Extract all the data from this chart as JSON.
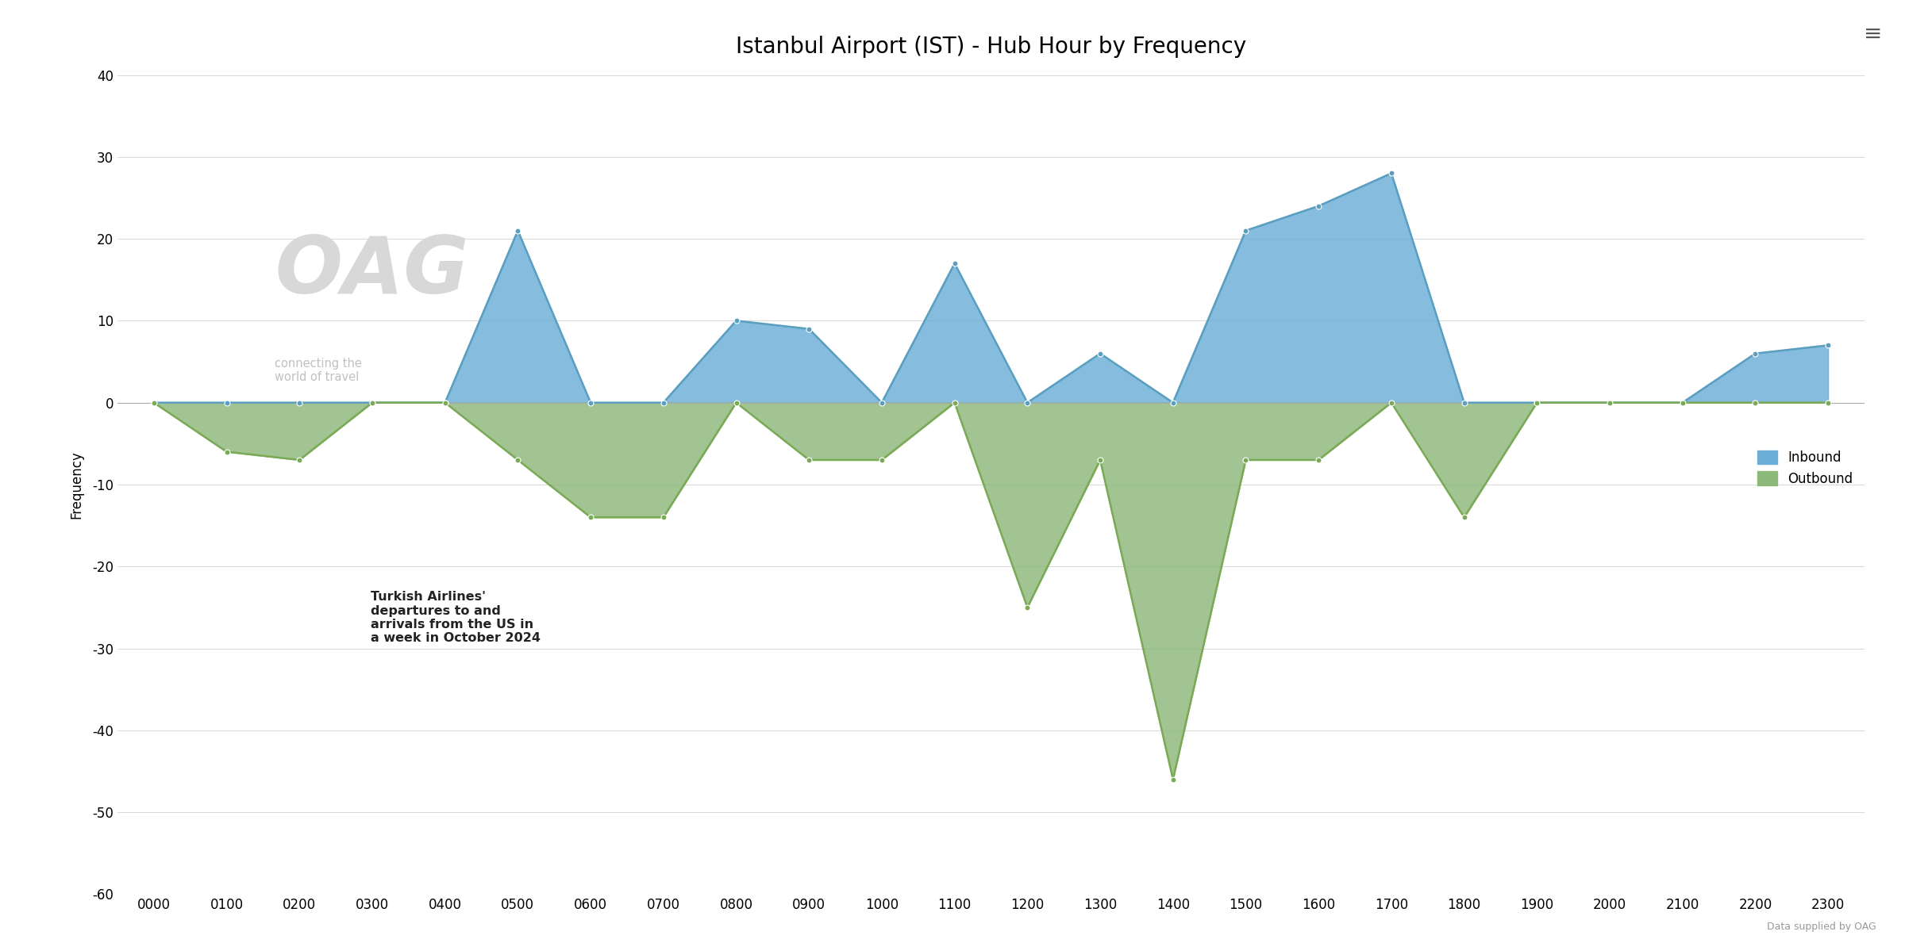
{
  "title": "Istanbul Airport (IST) - Hub Hour by Frequency",
  "xlabel": "",
  "ylabel": "Frequency",
  "hours": [
    "0000",
    "0100",
    "0200",
    "0300",
    "0400",
    "0500",
    "0600",
    "0700",
    "0800",
    "0900",
    "1000",
    "1100",
    "1200",
    "1300",
    "1400",
    "1500",
    "1600",
    "1700",
    "1800",
    "1900",
    "2000",
    "2100",
    "2200",
    "2300"
  ],
  "inbound": [
    0,
    0,
    0,
    0,
    0,
    21,
    0,
    0,
    10,
    9,
    0,
    17,
    0,
    6,
    0,
    21,
    24,
    28,
    0,
    0,
    0,
    0,
    6,
    7
  ],
  "outbound": [
    0,
    -6,
    -7,
    0,
    0,
    -7,
    -14,
    -14,
    0,
    -7,
    -7,
    0,
    -25,
    -7,
    -46,
    -7,
    -7,
    0,
    -14,
    0,
    0,
    0,
    0,
    0
  ],
  "inbound_color": "#6baed6",
  "outbound_color": "#8cb87a",
  "inbound_line_color": "#5a9ec0",
  "outbound_line_color": "#7aaa55",
  "background_color": "#ffffff",
  "grid_color": "#d8d8d8",
  "ylim": [
    -60,
    40
  ],
  "yticks": [
    -60,
    -50,
    -40,
    -30,
    -20,
    -10,
    0,
    10,
    20,
    30,
    40
  ],
  "annotation_text": "Turkish Airlines'\ndepartures to and\narrivals from the US in\na week in October 2024",
  "watermark_oag": "OAG",
  "watermark_sub": "connecting the\nworld of travel",
  "legend_inbound": "Inbound",
  "legend_outbound": "Outbound",
  "footnote": "Data supplied by OAG",
  "title_fontsize": 20,
  "tick_fontsize": 12
}
